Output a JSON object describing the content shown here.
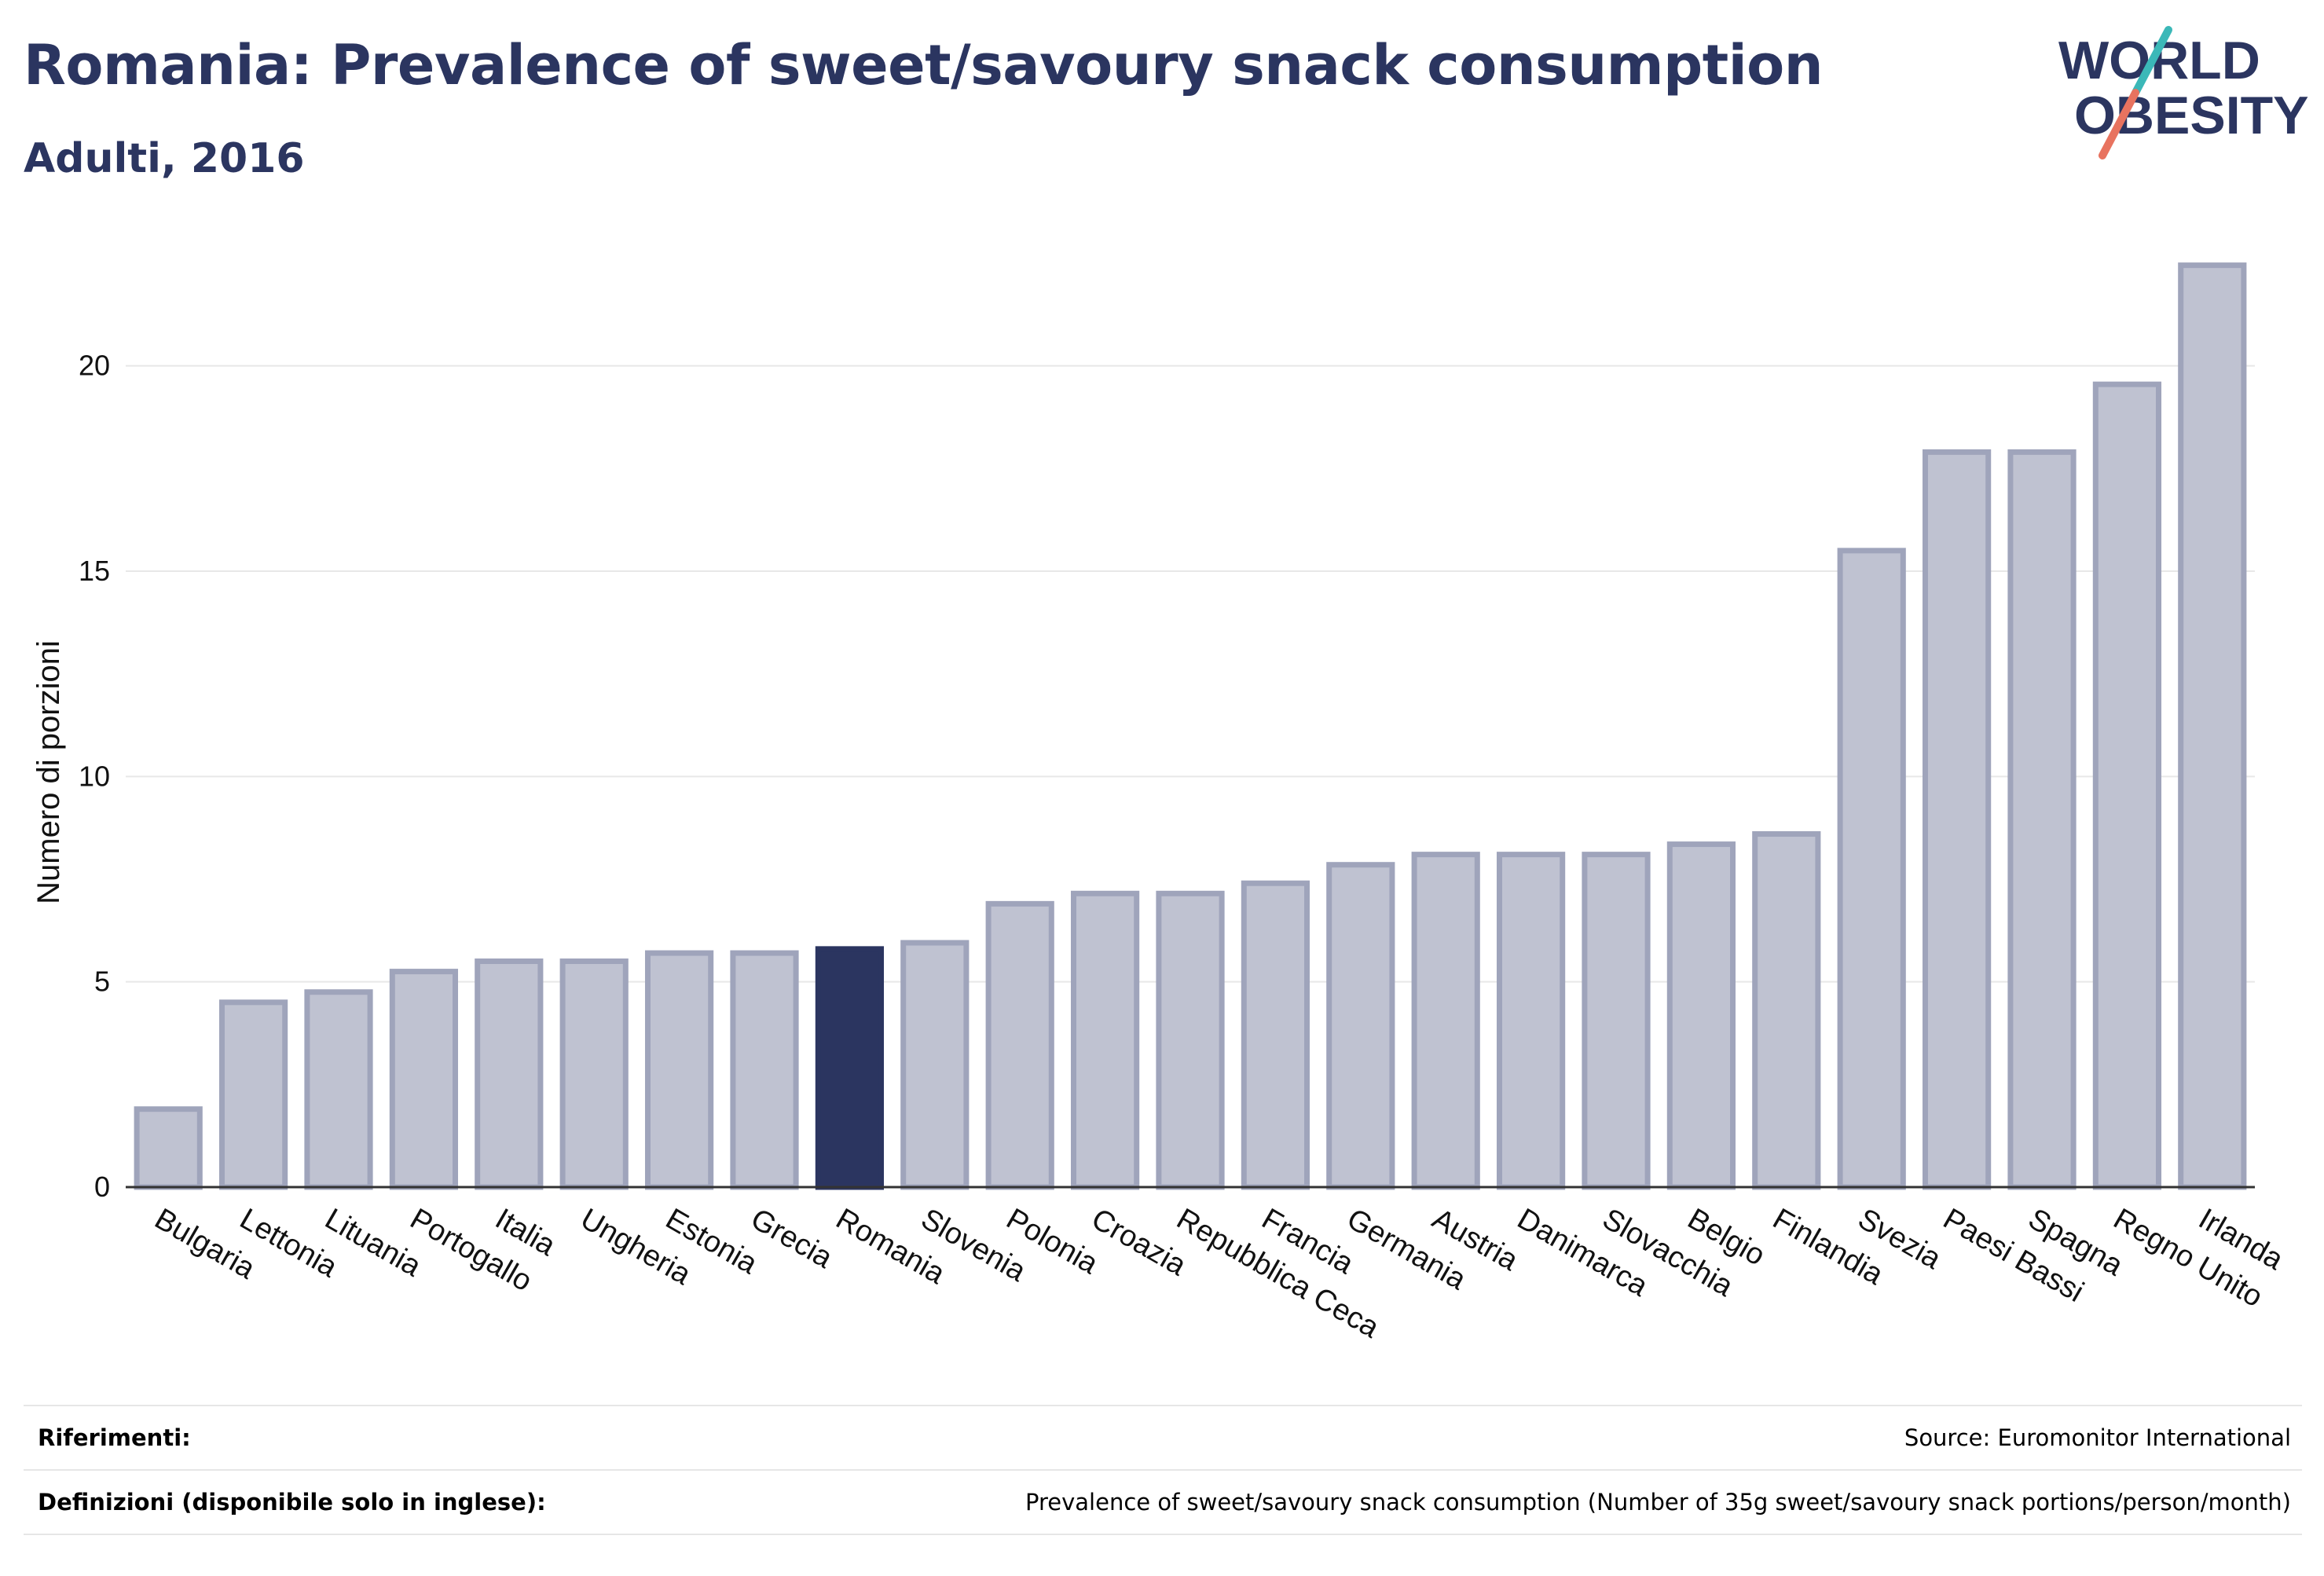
{
  "header": {
    "title": "Romania: Prevalence of sweet/savoury snack consumption",
    "subtitle": "Adulti, 2016"
  },
  "logo": {
    "line1": "WORLD",
    "line2": "OBESITY",
    "colors": {
      "text": "#2b3560",
      "slash_teal": "#3bb8b8",
      "slash_coral": "#e8735f"
    }
  },
  "colors": {
    "bar_fill": "#bfc2d1",
    "bar_stroke": "#9fa4bb",
    "highlight_fill": "#2b3560",
    "grid": "#e8e8e8",
    "axis": "#333333"
  },
  "chart_data": {
    "type": "bar",
    "ylabel": "Numero di porzioni",
    "xlabel": "",
    "ylim": [
      0,
      22.5
    ],
    "yticks": [
      0,
      5,
      10,
      15,
      20
    ],
    "grid": true,
    "highlight": "Romania",
    "categories": [
      "Bulgaria",
      "Lettonia",
      "Lituania",
      "Portogallo",
      "Italia",
      "Ungheria",
      "Estonia",
      "Grecia",
      "Romania",
      "Slovenia",
      "Polonia",
      "Croazia",
      "Repubblica Ceca",
      "Francia",
      "Germania",
      "Austria",
      "Danimarca",
      "Slovacchia",
      "Belgio",
      "Finlandia",
      "Svezia",
      "Paesi Bassi",
      "Spagna",
      "Regno Unito",
      "Irlanda"
    ],
    "values": [
      1.9,
      4.5,
      4.75,
      5.25,
      5.5,
      5.5,
      5.7,
      5.7,
      5.8,
      5.95,
      6.9,
      7.15,
      7.15,
      7.4,
      7.85,
      8.1,
      8.1,
      8.1,
      8.35,
      8.6,
      15.5,
      17.9,
      17.9,
      19.55,
      22.45
    ]
  },
  "footer": {
    "references_label": "Riferimenti:",
    "references_value": "Source: Euromonitor International",
    "definitions_label": "Definizioni (disponibile solo in inglese):",
    "definitions_value": "Prevalence of sweet/savoury snack consumption (Number of 35g sweet/savoury snack portions/person/month)"
  }
}
